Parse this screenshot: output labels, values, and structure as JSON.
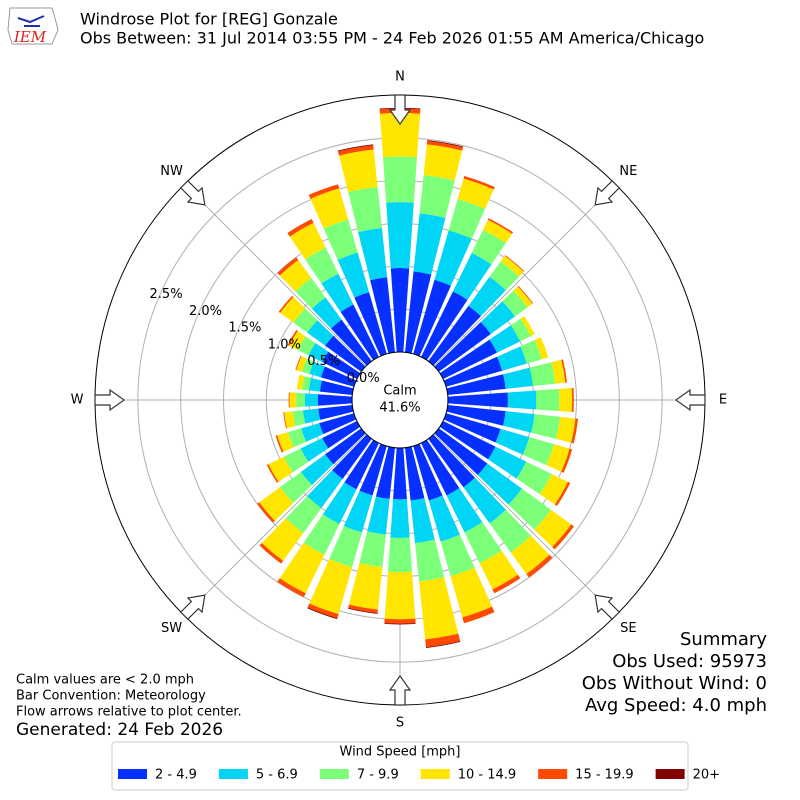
{
  "chart_data": {
    "type": "windrose",
    "title": "Windrose Plot for [REG] Gonzale",
    "subtitle": "Obs Between: 31 Jul 2014 03:55 PM - 24 Feb 2026 01:55 AM America/Chicago",
    "logo": "IEM",
    "compass": [
      "N",
      "NE",
      "E",
      "SE",
      "S",
      "SW",
      "W",
      "NW"
    ],
    "calm": {
      "label": "Calm",
      "value": "41.6%"
    },
    "rlim": [
      0,
      3.0
    ],
    "rticks": [
      {
        "value": 0,
        "label": "0.0%"
      },
      {
        "value": 0.5,
        "label": "0.5%"
      },
      {
        "value": 1.0,
        "label": "1.0%"
      },
      {
        "value": 1.5,
        "label": "1.5%"
      },
      {
        "value": 2.0,
        "label": "2.0%"
      },
      {
        "value": 2.5,
        "label": "2.5%"
      }
    ],
    "legend_title": "Wind Speed [mph]",
    "series": [
      {
        "name": "2 - 4.9",
        "color": "#0530ff",
        "values": [
          0.98,
          0.95,
          0.9,
          0.85,
          0.8,
          0.75,
          0.7,
          0.68,
          0.68,
          0.7,
          0.68,
          0.66,
          0.68,
          0.7,
          0.7,
          0.68,
          0.66,
          0.62,
          0.6,
          0.6,
          0.6,
          0.6,
          0.58,
          0.52,
          0.45,
          0.42,
          0.4,
          0.4,
          0.38,
          0.4,
          0.45,
          0.52,
          0.6,
          0.68,
          0.75,
          0.88
        ]
      },
      {
        "name": "5 - 6.9",
        "color": "#00d5f5",
        "values": [
          0.77,
          0.68,
          0.6,
          0.5,
          0.42,
          0.35,
          0.3,
          0.3,
          0.32,
          0.33,
          0.34,
          0.35,
          0.4,
          0.5,
          0.52,
          0.48,
          0.5,
          0.5,
          0.45,
          0.42,
          0.45,
          0.45,
          0.42,
          0.35,
          0.28,
          0.22,
          0.18,
          0.15,
          0.13,
          0.14,
          0.18,
          0.26,
          0.32,
          0.4,
          0.48,
          0.58
        ]
      },
      {
        "name": "7 - 9.9",
        "color": "#7cff79",
        "values": [
          0.53,
          0.45,
          0.38,
          0.3,
          0.22,
          0.18,
          0.14,
          0.18,
          0.26,
          0.27,
          0.3,
          0.3,
          0.33,
          0.42,
          0.42,
          0.4,
          0.42,
          0.45,
          0.4,
          0.38,
          0.42,
          0.4,
          0.36,
          0.3,
          0.22,
          0.16,
          0.12,
          0.1,
          0.08,
          0.09,
          0.14,
          0.2,
          0.28,
          0.34,
          0.4,
          0.48
        ]
      },
      {
        "name": "10 - 14.9",
        "color": "#ffe500",
        "values": [
          0.51,
          0.36,
          0.25,
          0.13,
          0.08,
          0.07,
          0.05,
          0.08,
          0.12,
          0.15,
          0.18,
          0.19,
          0.21,
          0.29,
          0.31,
          0.34,
          0.5,
          0.68,
          0.55,
          0.5,
          0.57,
          0.5,
          0.4,
          0.3,
          0.2,
          0.13,
          0.1,
          0.08,
          0.06,
          0.07,
          0.11,
          0.19,
          0.26,
          0.32,
          0.38,
          0.44
        ]
      },
      {
        "name": "15 - 19.9",
        "color": "#ff4a00",
        "values": [
          0.05,
          0.04,
          0.03,
          0.02,
          0.01,
          0.01,
          0,
          0,
          0.02,
          0.02,
          0.03,
          0.03,
          0.03,
          0.04,
          0.05,
          0.05,
          0.07,
          0.09,
          0.05,
          0.04,
          0.05,
          0.05,
          0.04,
          0.03,
          0.02,
          0.02,
          0.01,
          0.01,
          0,
          0.01,
          0.02,
          0.02,
          0.04,
          0.05,
          0.05,
          0.05
        ]
      },
      {
        "name": "20+",
        "color": "#800000",
        "values": [
          0.01,
          0.01,
          0,
          0,
          0,
          0,
          0,
          0,
          0,
          0,
          0,
          0,
          0,
          0,
          0,
          0,
          0,
          0.01,
          0.01,
          0.01,
          0.01,
          0,
          0,
          0,
          0,
          0,
          0,
          0,
          0,
          0,
          0,
          0,
          0,
          0,
          0,
          0.01
        ]
      }
    ],
    "notes": [
      "Calm values are < 2.0 mph",
      "Bar Convention: Meteorology",
      "Flow arrows relative to plot center."
    ],
    "generated": "Generated: 24 Feb 2026",
    "summary": [
      "Summary",
      "Obs Used: 95973",
      "Obs Without Wind: 0",
      "Avg Speed: 4.0 mph"
    ]
  }
}
